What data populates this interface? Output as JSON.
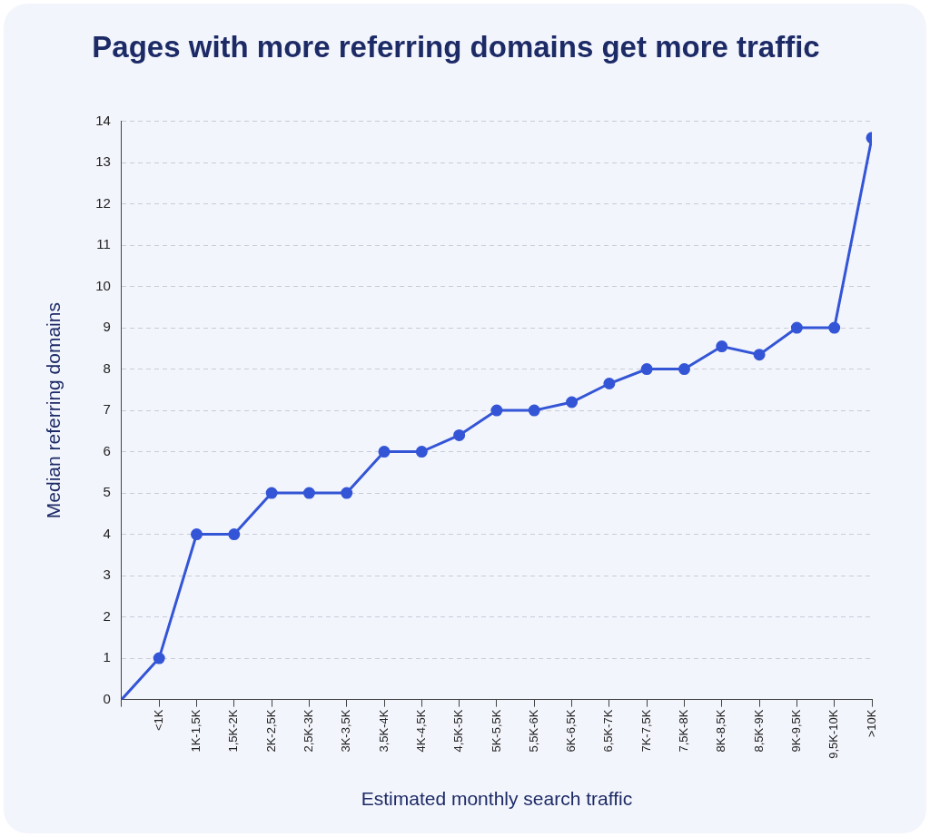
{
  "chart_data": {
    "type": "line",
    "title": "Pages with more referring domains get more traffic",
    "x_label": "Estimated monthly search traffic",
    "y_label": "Median referring domains",
    "categories": [
      null,
      "<1K",
      "1K-1,5K",
      "1,5K-2K",
      "2K-2,5K",
      "2,5K-3K",
      "3K-3,5K",
      "3,5K-4K",
      "4K-4,5K",
      "4,5K-5K",
      "5K-5,5K",
      "5,5K-6K",
      "6K-6,5K",
      "6,5K-7K",
      "7K-7,5K",
      "7,5K-8K",
      "8K-8,5K",
      "8,5K-9K",
      "9K-9,5K",
      "9,5K-10K",
      ">10K"
    ],
    "values": [
      0,
      1,
      4,
      4,
      5,
      5,
      5,
      6,
      6,
      6.4,
      7,
      7,
      7.2,
      7.65,
      8,
      8,
      8.55,
      8.35,
      9,
      9,
      13.6
    ],
    "color": "#3355d6",
    "ylim": [
      0,
      14
    ],
    "yticks": [
      0,
      1,
      2,
      3,
      4,
      5,
      6,
      7,
      8,
      9,
      10,
      11,
      12,
      13,
      14
    ],
    "grid": true,
    "marker": "circle"
  }
}
